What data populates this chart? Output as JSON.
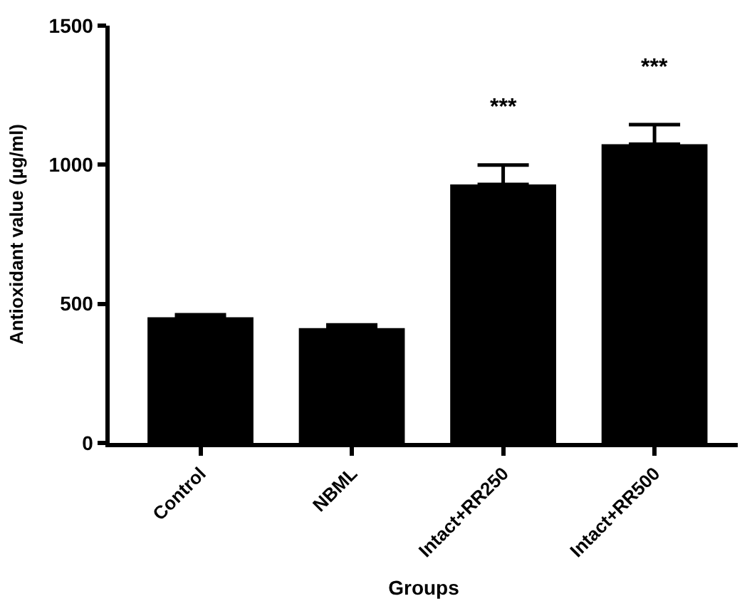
{
  "chart_data": {
    "type": "bar",
    "xlabel": "Groups",
    "ylabel": "Antioxidant value (µg/ml)",
    "categories": [
      "Control",
      "NBML",
      "Intact+RR250",
      "Intact+RR500"
    ],
    "values": [
      452,
      413,
      929,
      1074
    ],
    "errors": [
      [
        452,
        461
      ],
      [
        413,
        424
      ],
      [
        929,
        999
      ],
      [
        1074,
        1144
      ]
    ],
    "color": "#000000",
    "ylim": [
      0,
      1500
    ],
    "yticks": [
      0,
      500,
      1000,
      1500
    ],
    "annotations": [
      "***",
      "***"
    ]
  }
}
